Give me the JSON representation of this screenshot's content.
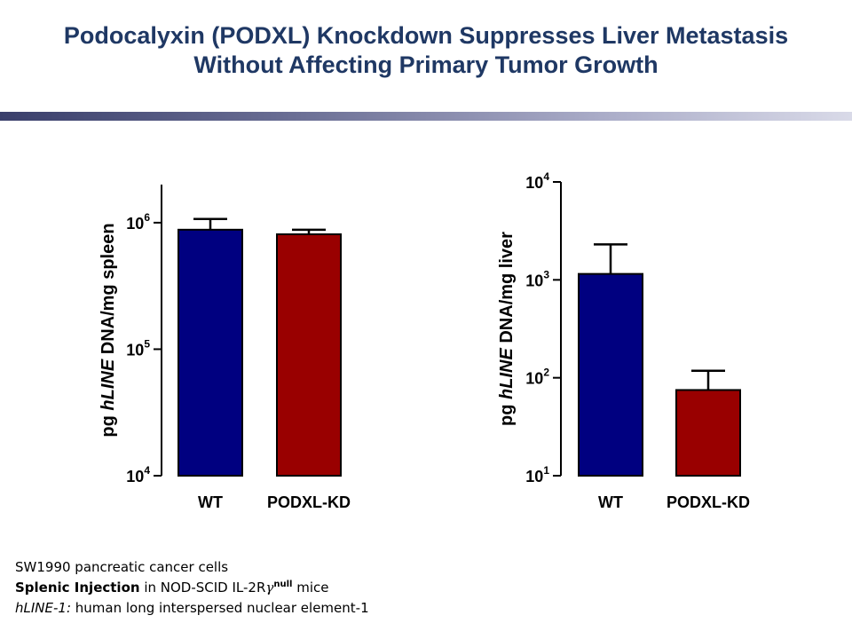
{
  "title": {
    "line1": "Podocalyxin (PODXL) Knockdown Suppresses Liver Metastasis",
    "line2": "Without Affecting Primary Tumor Growth"
  },
  "chart_data": [
    {
      "type": "bar",
      "yscale": "log",
      "ylabel_parts": [
        "pg ",
        "hLINE",
        " DNA/mg spleen"
      ],
      "ylim": [
        10000,
        2000000
      ],
      "yticks": [
        {
          "value": 10000,
          "base": "10",
          "exp": "4"
        },
        {
          "value": 100000,
          "base": "10",
          "exp": "5"
        },
        {
          "value": 1000000,
          "base": "10",
          "exp": "6"
        }
      ],
      "categories": [
        "WT",
        "PODXL-KD"
      ],
      "values": [
        880000,
        810000
      ],
      "error_upper": [
        1070000,
        880000
      ],
      "bar_colors": [
        "#000080",
        "#990000"
      ]
    },
    {
      "type": "bar",
      "yscale": "log",
      "ylabel_parts": [
        "pg ",
        "hLINE",
        " DNA/mg liver"
      ],
      "ylim": [
        10,
        10000
      ],
      "yticks": [
        {
          "value": 10,
          "base": "10",
          "exp": "1"
        },
        {
          "value": 100,
          "base": "10",
          "exp": "2"
        },
        {
          "value": 1000,
          "base": "10",
          "exp": "3"
        },
        {
          "value": 10000,
          "base": "10",
          "exp": "4"
        }
      ],
      "categories": [
        "WT",
        "PODXL-KD"
      ],
      "values": [
        1150,
        75
      ],
      "error_upper": [
        2300,
        118
      ],
      "bar_colors": [
        "#000080",
        "#990000"
      ]
    }
  ],
  "footnotes": {
    "line1": "SW1990 pancreatic cancer cells",
    "line2_bold": "Splenic Injection",
    "line2_rest": " in NOD-SCID IL-2R",
    "line2_gamma": "γ",
    "line2_sup": "null",
    "line2_end": " mice",
    "line3_italic": "hLINE-1:",
    "line3_rest": " human long interspersed nuclear element-1"
  }
}
